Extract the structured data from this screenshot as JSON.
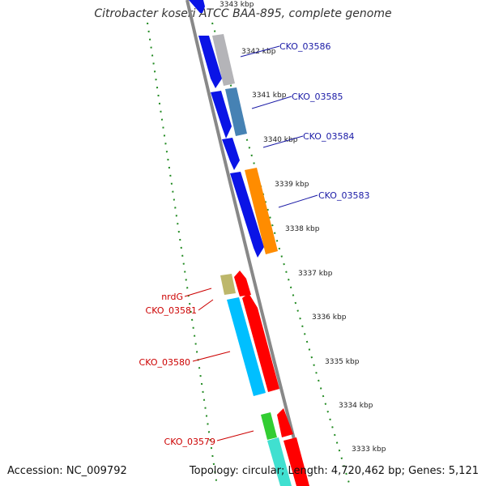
{
  "title": "Citrobacter koseri ATCC BAA-895, complete genome",
  "accession_text": "Accession: NC_009792",
  "summary_text": "Topology: circular; Length: 4,720,462 bp; Genes: 5,121",
  "ticks": [
    "3343 kbp",
    "3342 kbp",
    "3341 kbp",
    "3340 kbp",
    "3339 kbp",
    "3338 kbp",
    "3337 kbp",
    "3336 kbp",
    "3335 kbp",
    "3334 kbp",
    "3333 kbp"
  ],
  "gene_labels_right": [
    "CKO_03586",
    "CKO_03585",
    "CKO_03584",
    "CKO_03583"
  ],
  "gene_labels_left": [
    "nrdG",
    "CKO_03581",
    "CKO_03580",
    "CKO_03579"
  ],
  "colors": {
    "backbone": "#888888",
    "guide_dots": "#228b22",
    "blue_cds": "#0a14e6",
    "gray_cds": "#b4b4b8",
    "steel_cds": "#4682b4",
    "orange_cds": "#ff8c00",
    "khaki_cds": "#bdb76b",
    "red_cds": "#ff0000",
    "cyan_cds": "#00bfff",
    "green_cds": "#32cd32",
    "turquoise_cds": "#40e0d0",
    "label_blue": "#1a1aa6",
    "label_red": "#cc0000"
  }
}
